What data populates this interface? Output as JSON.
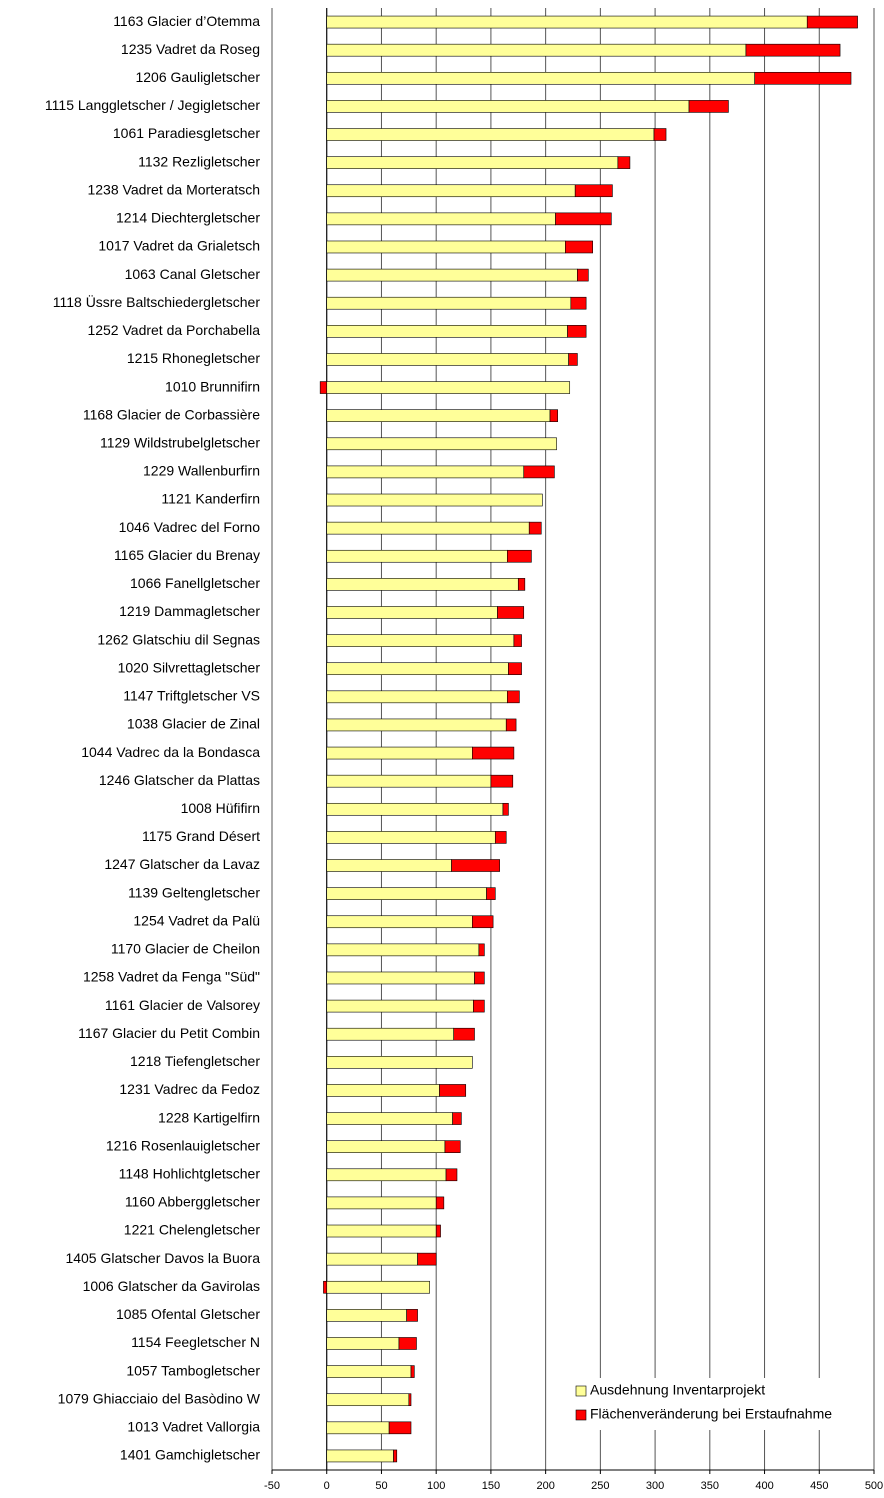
{
  "chart_data": {
    "type": "bar",
    "orientation": "horizontal",
    "stacked": true,
    "categories": [
      "1163 Glacier d’Otemma",
      "1235 Vadret da Roseg",
      "1206 Gauligletscher",
      "1115 Langgletscher / Jegigletscher",
      "1061 Paradiesgletscher",
      "1132 Rezligletscher",
      "1238 Vadret da Morteratsch",
      "1214 Diechtergletscher",
      "1017 Vadret da Grialetsch",
      "1063 Canal Gletscher",
      "1118 Üssre Baltschiedergletscher",
      "1252 Vadret da Porchabella",
      "1215 Rhonegletscher",
      "1010 Brunnifirn",
      "1168 Glacier de Corbassière",
      "1129 Wildstrubelgletscher",
      "1229 Wallenburfirn",
      "1121 Kanderfirn",
      "1046 Vadrec del Forno",
      "1165 Glacier du Brenay",
      "1066 Fanellgletscher",
      "1219 Dammagletscher",
      "1262 Glatschiu dil Segnas",
      "1020 Silvrettagletscher",
      "1147 Triftgletscher VS",
      "1038 Glacier de Zinal",
      "1044 Vadrec da la Bondasca",
      "1246 Glatscher da Plattas",
      "1008 Hüfifirn",
      "1175 Grand Désert",
      "1247 Glatscher da Lavaz",
      "1139 Geltengletscher",
      "1254 Vadret da Palü",
      "1170 Glacier de Cheilon",
      "1258 Vadret da Fenga \"Süd\"",
      "1161 Glacier de Valsorey",
      "1167 Glacier du Petit Combin",
      "1218 Tiefengletscher",
      "1231 Vadrec da Fedoz",
      "1228 Kartigelfirn",
      "1216 Rosenlauigletscher",
      "1148 Hohlichtgletscher",
      "1160 Abberggletscher",
      "1221 Chelengletscher",
      "1405 Glatscher Davos la Buora",
      "1006 Glatscher da Gavirolas",
      "1085 Ofental Gletscher",
      "1154 Feegletscher N",
      "1057 Tambogletscher",
      "1079 Ghiacciaio del Basòdino W",
      "1013 Vadret Vallorgia",
      "1401 Gamchigletscher"
    ],
    "series": [
      {
        "name": "Ausdehnung Inventarprojekt",
        "color": "#ffff99",
        "values": [
          439,
          383,
          391,
          331,
          299,
          266,
          227,
          209,
          218,
          229,
          223,
          220,
          221,
          222,
          204,
          210,
          180,
          197,
          185,
          165,
          175,
          156,
          171,
          166,
          165,
          164,
          133,
          150,
          161,
          154,
          114,
          146,
          133,
          139,
          135,
          134,
          116,
          133,
          103,
          115,
          108,
          109,
          100,
          100,
          83,
          94,
          73,
          66,
          77,
          75,
          57,
          61
        ]
      },
      {
        "name": "Flächenveränderung bei Erstaufnahme",
        "color": "#ff0000",
        "values": [
          46,
          86,
          88,
          36,
          11,
          11,
          34,
          51,
          25,
          10,
          14,
          17,
          8,
          -6,
          7,
          0,
          28,
          0,
          11,
          22,
          6,
          24,
          7,
          12,
          11,
          9,
          38,
          20,
          5,
          10,
          44,
          8,
          19,
          5,
          9,
          10,
          19,
          0,
          24,
          8,
          14,
          10,
          7,
          4,
          17,
          -3,
          10,
          16,
          3,
          2,
          20,
          3
        ]
      }
    ],
    "xlim": [
      -50,
      500
    ],
    "xticks": [
      -50,
      0,
      50,
      100,
      150,
      200,
      250,
      300,
      350,
      400,
      450,
      500
    ],
    "grid": true,
    "legend": "lower right"
  }
}
